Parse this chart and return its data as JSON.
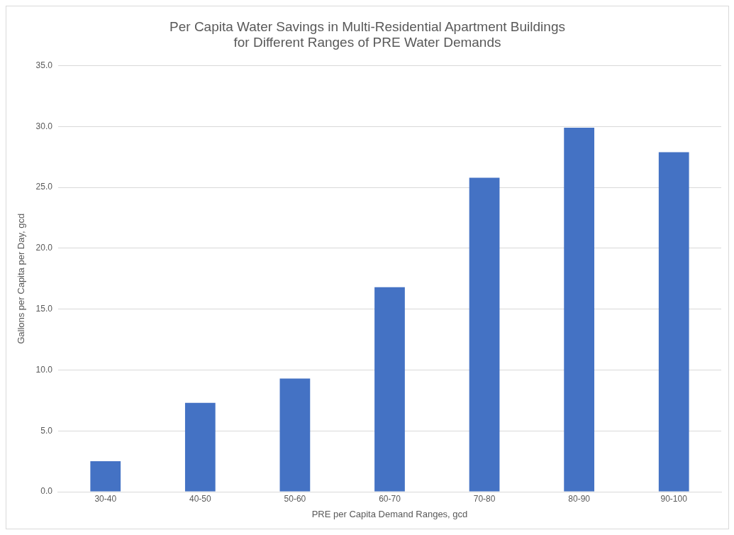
{
  "chart_data": {
    "type": "bar",
    "title": "Per Capita Water Savings in Multi-Residential Apartment Buildings\nfor Different Ranges of PRE Water Demands",
    "xlabel": "PRE per Capita Demand Ranges, gcd",
    "ylabel": "Gallons per Capita per Day, gcd",
    "categories": [
      "30-40",
      "40-50",
      "50-60",
      "60-70",
      "70-80",
      "80-90",
      "90-100"
    ],
    "values": [
      2.5,
      7.3,
      9.3,
      16.8,
      25.8,
      29.9,
      27.9
    ],
    "color": "#4472c4",
    "ylim": [
      0,
      35
    ],
    "yticks": [
      {
        "value": 0,
        "label": "0.0"
      },
      {
        "value": 5,
        "label": "5.0"
      },
      {
        "value": 10,
        "label": "10.0"
      },
      {
        "value": 15,
        "label": "15.0"
      },
      {
        "value": 20,
        "label": "20.0"
      },
      {
        "value": 25,
        "label": "25.0"
      },
      {
        "value": 30,
        "label": "30.0"
      },
      {
        "value": 35,
        "label": "35.0"
      }
    ],
    "grid": "y",
    "legend": false
  }
}
